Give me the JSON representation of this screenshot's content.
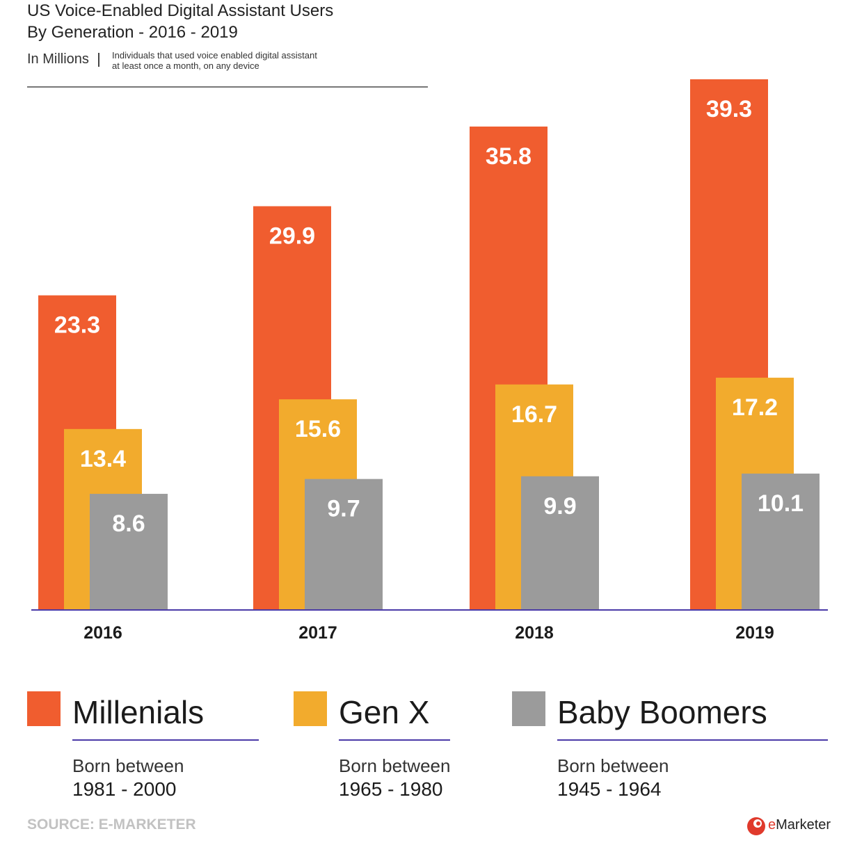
{
  "header": {
    "title_line1": "US Voice-Enabled Digital Assistant Users",
    "title_line2": "By Generation - 2016 - 2019",
    "units": "In Millions",
    "note_line1": "Individuals that used voice enabled digital assistant",
    "note_line2": "at least once a month, on any device"
  },
  "chart_data": {
    "type": "bar",
    "title": "US Voice-Enabled Digital Assistant Users By Generation - 2016 - 2019",
    "categories": [
      "2016",
      "2017",
      "2018",
      "2019"
    ],
    "ylabel": "In Millions",
    "ylim": [
      0,
      39.3
    ],
    "grid": false,
    "legend_placement": "bottom",
    "series": [
      {
        "name": "Millenials",
        "color": "#f05d2f",
        "values": [
          23.3,
          29.9,
          35.8,
          39.3
        ],
        "labels": [
          "23.3",
          "29.9",
          "35.8",
          "39.3"
        ]
      },
      {
        "name": "Gen X",
        "color": "#f2ab2d",
        "values": [
          13.4,
          15.6,
          16.7,
          17.2
        ],
        "labels": [
          "13.4",
          "15.6",
          "16.7",
          "17.2"
        ]
      },
      {
        "name": "Baby Boomers",
        "color": "#9b9b9b",
        "values": [
          8.6,
          9.7,
          9.9,
          10.1
        ],
        "labels": [
          "8.6",
          "9.7",
          "9.9",
          "10.1"
        ]
      }
    ]
  },
  "legend": [
    {
      "name": "Millenials",
      "born_label": "Born between",
      "range": "1981 - 2000",
      "color": "#f05d2f"
    },
    {
      "name": "Gen X",
      "born_label": "Born between",
      "range": "1965 - 1980",
      "color": "#f2ab2d"
    },
    {
      "name": "Baby Boomers",
      "born_label": "Born between",
      "range": "1945 - 1964",
      "color": "#9b9b9b"
    }
  ],
  "footer": {
    "source": "SOURCE: E-MARKETER",
    "logo_e": "e",
    "logo_rest": "Marketer",
    "logo_icon": "emarketer-logo-icon"
  }
}
